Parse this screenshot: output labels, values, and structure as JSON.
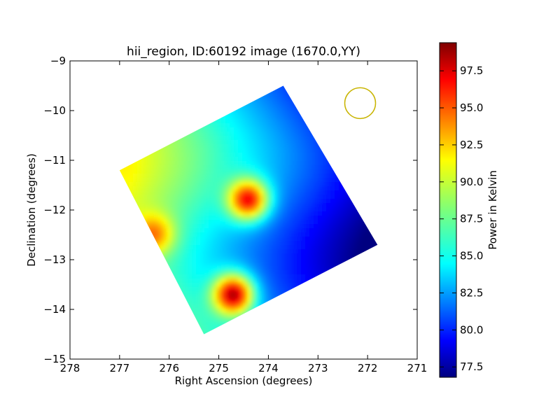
{
  "chart_data": {
    "type": "heatmap",
    "title": "hii_region, ID:60192 image (1670.0,YY)",
    "xlabel": "Right Ascension (degrees)",
    "ylabel": "Declination (degrees)",
    "xlim": [
      278,
      271
    ],
    "ylim": [
      -15,
      -9
    ],
    "x_ticks": [
      "278",
      "277",
      "276",
      "275",
      "274",
      "273",
      "272",
      "271"
    ],
    "y_ticks": [
      "−9",
      "−10",
      "−11",
      "−12",
      "−13",
      "−14",
      "−15"
    ],
    "grid": false,
    "colormap": "jet",
    "colorbar": {
      "label": "Power in Kelvin",
      "range": [
        76.8,
        99.4
      ],
      "ticks": [
        "77.5",
        "80.0",
        "82.5",
        "85.0",
        "87.5",
        "90.0",
        "92.5",
        "95.0",
        "97.5"
      ]
    },
    "coverage_polygon": [
      {
        "ra": 273.7,
        "dec": -9.5
      },
      {
        "ra": 271.8,
        "dec": -12.7
      },
      {
        "ra": 275.3,
        "dec": -14.5
      },
      {
        "ra": 277.0,
        "dec": -11.2
      }
    ],
    "background_level": {
      "ra_start": 276.8,
      "value_start": 90.0,
      "ra_end": 272.0,
      "value_end": 77.5
    },
    "sources": [
      {
        "ra": 274.7,
        "dec": -13.7,
        "peak": 99.0
      },
      {
        "ra": 274.4,
        "dec": -11.8,
        "peak": 96.5
      },
      {
        "ra": 276.3,
        "dec": -12.5,
        "peak": 95.0
      }
    ],
    "beam_marker": {
      "ra": 272.15,
      "dec": -9.85,
      "color": "#c8b400"
    }
  }
}
